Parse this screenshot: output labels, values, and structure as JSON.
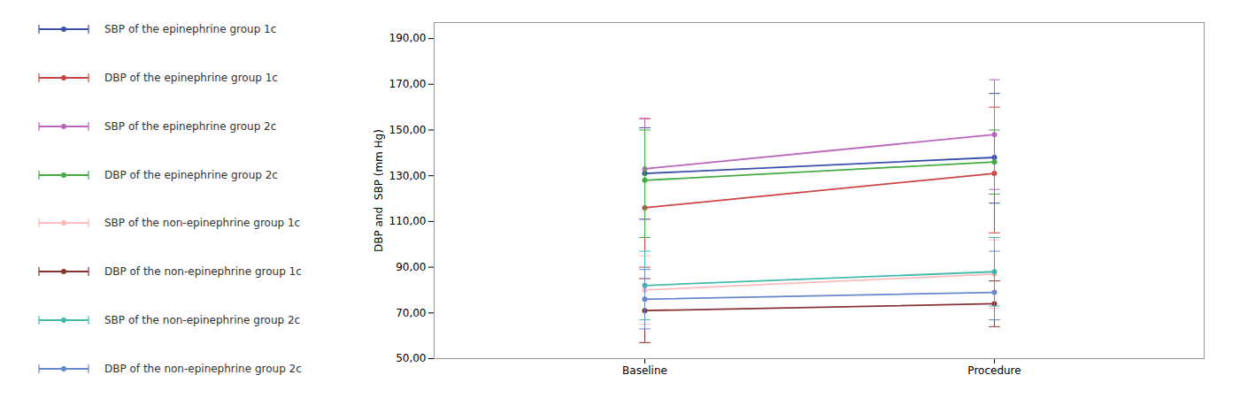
{
  "chart_data": {
    "type": "line",
    "categories": [
      "Baseline",
      "Procedure"
    ],
    "ylabel": "DBP and  SBP (mm Hg)",
    "ylim": [
      50.0,
      197.0
    ],
    "yticks": [
      {
        "value": 50.0,
        "label": "50,00"
      },
      {
        "value": 70.0,
        "label": "70,00"
      },
      {
        "value": 90.0,
        "label": "90,00"
      },
      {
        "value": 110.0,
        "label": "110,00"
      },
      {
        "value": 130.0,
        "label": "130,00"
      },
      {
        "value": 150.0,
        "label": "150,00"
      },
      {
        "value": 170.0,
        "label": "170,00"
      },
      {
        "value": 190.0,
        "label": "190,00"
      }
    ],
    "marker": "o",
    "legend": "left",
    "series": [
      {
        "name": "SBP of the epinephrine group 1c",
        "color": "#3A4EAA",
        "values": [
          131.0,
          138.0
        ],
        "yerr_low": [
          20.0,
          20.0
        ],
        "yerr_high": [
          20.0,
          28.0
        ]
      },
      {
        "name": "DBP of the epinephrine group 1c",
        "color": "#CC4444",
        "values": [
          116.0,
          131.0
        ],
        "yerr_low": [
          26.0,
          26.0
        ],
        "yerr_high": [
          39.0,
          29.0
        ]
      },
      {
        "name": "SBP of the epinephrine group 2c",
        "color": "#BB66BB",
        "values": [
          133.0,
          148.0
        ],
        "yerr_low": [
          22.0,
          24.0
        ],
        "yerr_high": [
          22.0,
          24.0
        ]
      },
      {
        "name": "DBP of the epinephrine group 2c",
        "color": "#44AA44",
        "values": [
          128.0,
          136.0
        ],
        "yerr_low": [
          25.0,
          14.0
        ],
        "yerr_high": [
          22.0,
          14.0
        ]
      },
      {
        "name": "SBP of the non-epinephrine group 1c",
        "color": "#FFBBBB",
        "values": [
          80.0,
          87.0
        ],
        "yerr_low": [
          15.0,
          15.0
        ],
        "yerr_high": [
          15.0,
          15.0
        ]
      },
      {
        "name": "DBP of the non-epinephrine group 1c",
        "color": "#883333",
        "values": [
          71.0,
          74.0
        ],
        "yerr_low": [
          14.0,
          10.0
        ],
        "yerr_high": [
          14.0,
          10.0
        ]
      },
      {
        "name": "SBP of the non-epinephrine group 2c",
        "color": "#44BBAA",
        "values": [
          82.0,
          88.0
        ],
        "yerr_low": [
          15.0,
          15.0
        ],
        "yerr_high": [
          15.0,
          15.0
        ]
      },
      {
        "name": "DBP of the non-epinephrine group 2c",
        "color": "#6688CC",
        "values": [
          76.0,
          79.0
        ],
        "yerr_low": [
          13.0,
          12.0
        ],
        "yerr_high": [
          13.0,
          18.0
        ]
      }
    ]
  }
}
